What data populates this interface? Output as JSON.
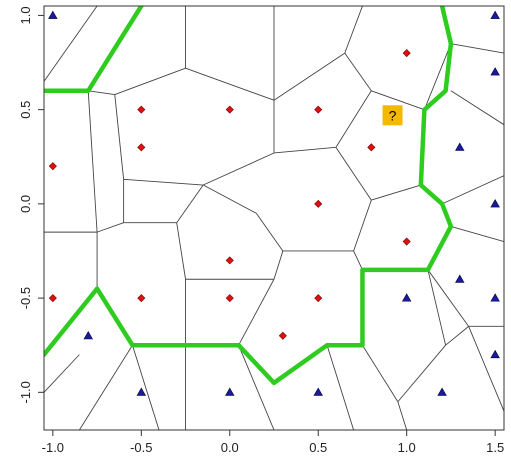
{
  "chart_data": {
    "type": "scatter",
    "title": "",
    "xlabel": "",
    "ylabel": "",
    "xlim": [
      -1.05,
      1.55
    ],
    "ylim": [
      -1.2,
      1.05
    ],
    "x_ticks": [
      -1.0,
      -0.5,
      0.0,
      0.5,
      1.0,
      1.5
    ],
    "x_tick_labels": [
      "-1.0",
      "-0.5",
      "0.0",
      "0.5",
      "1.0",
      "1.5"
    ],
    "y_ticks": [
      -1.0,
      -0.5,
      0.0,
      0.5,
      1.0
    ],
    "y_tick_labels": [
      "-1.0",
      "-0.5",
      "0.0",
      "0.5",
      "1.0"
    ],
    "grid": false,
    "legend": "none",
    "series": [
      {
        "marker": "diamond",
        "color": "#e01010",
        "points": [
          [
            0.0,
            0.5
          ],
          [
            -0.5,
            0.5
          ],
          [
            0.5,
            0.5
          ],
          [
            1.0,
            0.8
          ],
          [
            -0.5,
            0.3
          ],
          [
            0.8,
            0.3
          ],
          [
            -1.0,
            0.2
          ],
          [
            0.5,
            0.0
          ],
          [
            1.0,
            -0.2
          ],
          [
            0.0,
            -0.3
          ],
          [
            -1.0,
            -0.5
          ],
          [
            -0.5,
            -0.5
          ],
          [
            0.0,
            -0.5
          ],
          [
            0.5,
            -0.5
          ],
          [
            0.3,
            -0.7
          ]
        ]
      },
      {
        "marker": "triangle",
        "color": "#1a1aa0",
        "points": [
          [
            -1.0,
            1.0
          ],
          [
            1.5,
            1.0
          ],
          [
            1.5,
            0.7
          ],
          [
            1.3,
            0.3
          ],
          [
            1.5,
            0.0
          ],
          [
            1.3,
            -0.4
          ],
          [
            1.0,
            -0.5
          ],
          [
            1.5,
            -0.5
          ],
          [
            -0.8,
            -0.7
          ],
          [
            1.5,
            -0.8
          ],
          [
            -0.5,
            -1.0
          ],
          [
            0.0,
            -1.0
          ],
          [
            0.5,
            -1.0
          ],
          [
            1.2,
            -1.0
          ]
        ]
      }
    ],
    "annotations": [
      {
        "text": "?",
        "x": 0.92,
        "y": 0.47,
        "background": "#f5b800"
      }
    ],
    "voronoi_edges": [
      [
        [
          -0.75,
          1.05
        ],
        [
          -1.05,
          0.65
        ]
      ],
      [
        [
          -0.25,
          1.05
        ],
        [
          -0.25,
          0.72
        ]
      ],
      [
        [
          0.25,
          1.05
        ],
        [
          0.25,
          0.55
        ]
      ],
      [
        [
          0.75,
          1.05
        ],
        [
          0.65,
          0.8
        ]
      ],
      [
        [
          1.2,
          1.05
        ],
        [
          1.25,
          0.85
        ]
      ],
      [
        [
          -1.05,
          0.6
        ],
        [
          -0.8,
          0.6
        ]
      ],
      [
        [
          -0.8,
          0.6
        ],
        [
          -0.65,
          0.58
        ]
      ],
      [
        [
          -0.65,
          0.58
        ],
        [
          -0.25,
          0.72
        ]
      ],
      [
        [
          -0.25,
          0.72
        ],
        [
          0.25,
          0.55
        ]
      ],
      [
        [
          0.25,
          0.55
        ],
        [
          0.25,
          0.27
        ]
      ],
      [
        [
          0.25,
          0.55
        ],
        [
          0.65,
          0.8
        ]
      ],
      [
        [
          0.65,
          0.8
        ],
        [
          0.8,
          0.6
        ]
      ],
      [
        [
          0.8,
          0.6
        ],
        [
          0.6,
          0.3
        ]
      ],
      [
        [
          0.8,
          0.6
        ],
        [
          1.1,
          0.5
        ]
      ],
      [
        [
          1.1,
          0.5
        ],
        [
          1.25,
          0.85
        ]
      ],
      [
        [
          1.1,
          0.5
        ],
        [
          1.08,
          0.1
        ]
      ],
      [
        [
          1.25,
          0.85
        ],
        [
          1.55,
          0.8
        ]
      ],
      [
        [
          1.25,
          0.6
        ],
        [
          1.55,
          0.42
        ]
      ],
      [
        [
          1.08,
          0.1
        ],
        [
          1.2,
          0.0
        ]
      ],
      [
        [
          1.2,
          0.0
        ],
        [
          1.55,
          0.15
        ]
      ],
      [
        [
          1.2,
          0.0
        ],
        [
          1.25,
          -0.12
        ]
      ],
      [
        [
          1.25,
          -0.12
        ],
        [
          1.55,
          -0.2
        ]
      ],
      [
        [
          1.25,
          -0.12
        ],
        [
          1.12,
          -0.35
        ]
      ],
      [
        [
          1.12,
          -0.35
        ],
        [
          1.35,
          -0.65
        ]
      ],
      [
        [
          1.35,
          -0.65
        ],
        [
          1.55,
          -0.65
        ]
      ],
      [
        [
          1.35,
          -0.65
        ],
        [
          1.55,
          -1.1
        ]
      ],
      [
        [
          1.12,
          -0.35
        ],
        [
          0.75,
          -0.35
        ]
      ],
      [
        [
          1.12,
          -0.35
        ],
        [
          1.22,
          -0.75
        ]
      ],
      [
        [
          1.22,
          -0.75
        ],
        [
          1.35,
          -0.65
        ]
      ],
      [
        [
          1.22,
          -0.75
        ],
        [
          0.95,
          -1.05
        ]
      ],
      [
        [
          -0.65,
          0.58
        ],
        [
          -0.6,
          0.13
        ]
      ],
      [
        [
          -0.6,
          0.13
        ],
        [
          -0.15,
          0.1
        ]
      ],
      [
        [
          -0.15,
          0.1
        ],
        [
          0.25,
          0.27
        ]
      ],
      [
        [
          0.25,
          0.27
        ],
        [
          0.6,
          0.3
        ]
      ],
      [
        [
          0.6,
          0.3
        ],
        [
          0.8,
          0.02
        ]
      ],
      [
        [
          0.8,
          0.02
        ],
        [
          1.08,
          0.1
        ]
      ],
      [
        [
          0.8,
          0.02
        ],
        [
          0.7,
          -0.25
        ]
      ],
      [
        [
          0.7,
          -0.25
        ],
        [
          0.75,
          -0.35
        ]
      ],
      [
        [
          0.75,
          -0.35
        ],
        [
          0.75,
          -0.75
        ]
      ],
      [
        [
          0.75,
          -0.75
        ],
        [
          0.55,
          -0.75
        ]
      ],
      [
        [
          0.55,
          -0.75
        ],
        [
          0.25,
          -0.95
        ]
      ],
      [
        [
          0.25,
          -0.95
        ],
        [
          0.05,
          -0.75
        ]
      ],
      [
        [
          0.05,
          -0.75
        ],
        [
          -0.55,
          -0.75
        ]
      ],
      [
        [
          -0.55,
          -0.75
        ],
        [
          -0.75,
          -0.45
        ]
      ],
      [
        [
          -0.75,
          -0.45
        ],
        [
          -1.05,
          -0.8
        ]
      ],
      [
        [
          -0.8,
          0.6
        ],
        [
          -0.75,
          -0.15
        ]
      ],
      [
        [
          -1.05,
          -0.15
        ],
        [
          -0.75,
          -0.15
        ]
      ],
      [
        [
          -0.75,
          -0.15
        ],
        [
          -0.6,
          -0.1
        ]
      ],
      [
        [
          -0.75,
          -0.15
        ],
        [
          -0.75,
          -0.45
        ]
      ],
      [
        [
          -0.6,
          -0.1
        ],
        [
          -0.6,
          0.13
        ]
      ],
      [
        [
          -0.6,
          -0.1
        ],
        [
          -0.3,
          -0.1
        ]
      ],
      [
        [
          -0.3,
          -0.1
        ],
        [
          -0.15,
          0.1
        ]
      ],
      [
        [
          -0.3,
          -0.1
        ],
        [
          -0.25,
          -0.4
        ]
      ],
      [
        [
          -0.25,
          -0.4
        ],
        [
          0.25,
          -0.4
        ]
      ],
      [
        [
          -0.25,
          -0.4
        ],
        [
          -0.25,
          -1.2
        ]
      ],
      [
        [
          0.25,
          -0.4
        ],
        [
          0.3,
          -0.25
        ]
      ],
      [
        [
          0.3,
          -0.25
        ],
        [
          0.7,
          -0.25
        ]
      ],
      [
        [
          0.3,
          -0.25
        ],
        [
          0.15,
          -0.05
        ]
      ],
      [
        [
          0.15,
          -0.05
        ],
        [
          -0.15,
          0.1
        ]
      ],
      [
        [
          0.25,
          -0.4
        ],
        [
          0.05,
          -0.75
        ]
      ],
      [
        [
          -0.55,
          -0.75
        ],
        [
          -0.4,
          -1.2
        ]
      ],
      [
        [
          -0.85,
          -0.8
        ],
        [
          -1.05,
          -1.0
        ]
      ],
      [
        [
          -0.55,
          -0.75
        ],
        [
          -0.85,
          -1.2
        ]
      ],
      [
        [
          0.05,
          -0.75
        ],
        [
          0.25,
          -1.2
        ]
      ],
      [
        [
          0.55,
          -0.75
        ],
        [
          0.7,
          -1.2
        ]
      ],
      [
        [
          0.75,
          -0.75
        ],
        [
          0.95,
          -1.05
        ]
      ],
      [
        [
          0.95,
          -1.05
        ],
        [
          1.0,
          -1.2
        ]
      ]
    ],
    "boundary": [
      [
        -1.05,
        0.6
      ],
      [
        -0.8,
        0.6
      ],
      [
        -0.5,
        1.05
      ],
      null,
      [
        1.2,
        1.05
      ],
      [
        1.25,
        0.85
      ],
      [
        1.22,
        0.6
      ],
      [
        1.1,
        0.5
      ],
      [
        1.08,
        0.1
      ],
      [
        1.2,
        0.0
      ],
      [
        1.25,
        -0.12
      ],
      [
        1.12,
        -0.35
      ],
      [
        0.75,
        -0.35
      ],
      [
        0.75,
        -0.75
      ],
      [
        0.55,
        -0.75
      ],
      [
        0.25,
        -0.95
      ],
      [
        0.05,
        -0.75
      ],
      [
        -0.55,
        -0.75
      ],
      [
        -0.75,
        -0.45
      ],
      [
        -1.05,
        -0.8
      ]
    ],
    "boundary_color": "#2ecc1e"
  }
}
